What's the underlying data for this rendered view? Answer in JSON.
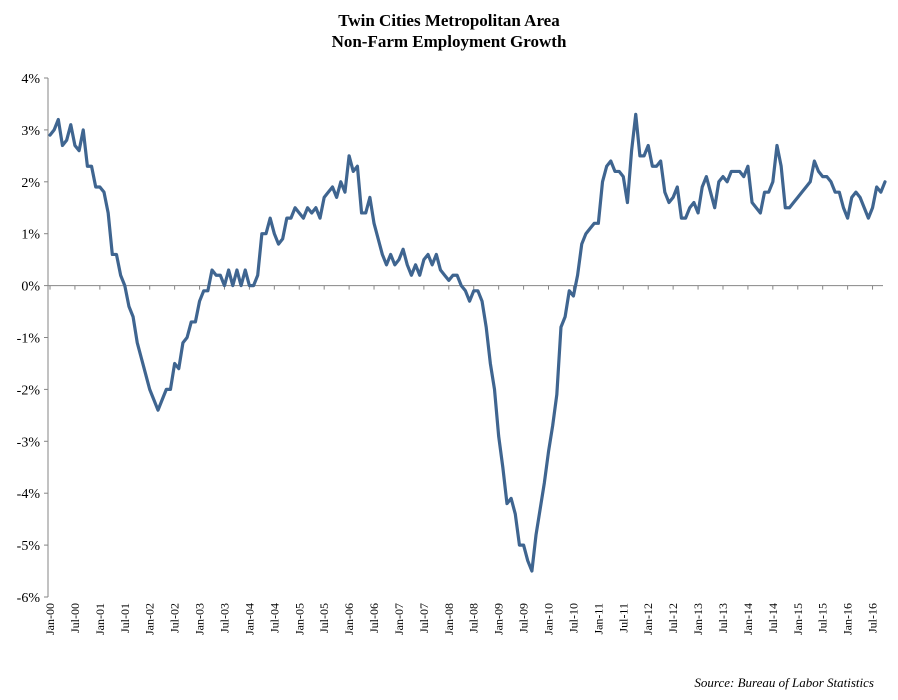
{
  "chart_data": {
    "type": "line",
    "title": "Twin Cities Metropolitan Area",
    "subtitle": "Non-Farm Employment Growth",
    "source": "Source: Bureau of Labor Statistics",
    "ylim": [
      -6,
      4
    ],
    "yticks": [
      4,
      3,
      2,
      1,
      0,
      -1,
      -2,
      -3,
      -4,
      -5,
      -6
    ],
    "ytick_labels": [
      "4%",
      "3%",
      "2%",
      "1%",
      "0%",
      "-1%",
      "-2%",
      "-3%",
      "-4%",
      "-5%",
      "-6%"
    ],
    "xtick_labels": [
      "Jan-00",
      "Jul-00",
      "Jan-01",
      "Jul-01",
      "Jan-02",
      "Jul-02",
      "Jan-03",
      "Jul-03",
      "Jan-04",
      "Jul-04",
      "Jan-05",
      "Jul-05",
      "Jan-06",
      "Jul-06",
      "Jan-07",
      "Jul-07",
      "Jan-08",
      "Jul-08",
      "Jan-09",
      "Jul-09",
      "Jan-10",
      "Jul-10",
      "Jan-11",
      "Jul-11",
      "Jan-12",
      "Jul-12",
      "Jan-13",
      "Jul-13",
      "Jan-14",
      "Jul-14",
      "Jan-15",
      "Jul-15",
      "Jan-16",
      "Jul-16"
    ],
    "colors": {
      "line": "#3f6590",
      "axis": "#868686"
    },
    "series": [
      {
        "name": "Non-Farm Employment Growth",
        "start": "Jan-00",
        "frequency": "monthly",
        "values": [
          2.9,
          3.0,
          3.2,
          2.7,
          2.8,
          3.1,
          2.7,
          2.6,
          3.0,
          2.3,
          2.3,
          1.9,
          1.9,
          1.8,
          1.4,
          0.6,
          0.6,
          0.2,
          0.0,
          -0.4,
          -0.6,
          -1.1,
          -1.4,
          -1.7,
          -2.0,
          -2.2,
          -2.4,
          -2.2,
          -2.0,
          -2.0,
          -1.5,
          -1.6,
          -1.1,
          -1.0,
          -0.7,
          -0.7,
          -0.3,
          -0.1,
          -0.1,
          0.3,
          0.2,
          0.2,
          0.0,
          0.3,
          0.0,
          0.3,
          0.0,
          0.3,
          0.0,
          0.0,
          0.2,
          1.0,
          1.0,
          1.3,
          1.0,
          0.8,
          0.9,
          1.3,
          1.3,
          1.5,
          1.4,
          1.3,
          1.5,
          1.4,
          1.5,
          1.3,
          1.7,
          1.8,
          1.9,
          1.7,
          2.0,
          1.8,
          2.5,
          2.2,
          2.3,
          1.4,
          1.4,
          1.7,
          1.2,
          0.9,
          0.6,
          0.4,
          0.6,
          0.4,
          0.5,
          0.7,
          0.4,
          0.2,
          0.4,
          0.2,
          0.5,
          0.6,
          0.4,
          0.6,
          0.3,
          0.2,
          0.1,
          0.2,
          0.2,
          0.0,
          -0.1,
          -0.3,
          -0.1,
          -0.1,
          -0.3,
          -0.8,
          -1.5,
          -2.0,
          -2.9,
          -3.5,
          -4.2,
          -4.1,
          -4.4,
          -5.0,
          -5.0,
          -5.3,
          -5.5,
          -4.8,
          -4.3,
          -3.8,
          -3.2,
          -2.7,
          -2.1,
          -0.8,
          -0.6,
          -0.1,
          -0.2,
          0.2,
          0.8,
          1.0,
          1.1,
          1.2,
          1.2,
          2.0,
          2.3,
          2.4,
          2.2,
          2.2,
          2.1,
          1.6,
          2.6,
          3.3,
          2.5,
          2.5,
          2.7,
          2.3,
          2.3,
          2.4,
          1.8,
          1.6,
          1.7,
          1.9,
          1.3,
          1.3,
          1.5,
          1.6,
          1.4,
          1.9,
          2.1,
          1.8,
          1.5,
          2.0,
          2.1,
          2.0,
          2.2,
          2.2,
          2.2,
          2.1,
          2.3,
          1.6,
          1.5,
          1.4,
          1.8,
          1.8,
          2.0,
          2.7,
          2.3,
          1.5,
          1.5,
          1.6,
          1.7,
          1.8,
          1.9,
          2.0,
          2.4,
          2.2,
          2.1,
          2.1,
          2.0,
          1.8,
          1.8,
          1.5,
          1.3,
          1.7,
          1.8,
          1.7,
          1.5,
          1.3,
          1.5,
          1.9,
          1.8,
          2.0
        ]
      }
    ]
  }
}
